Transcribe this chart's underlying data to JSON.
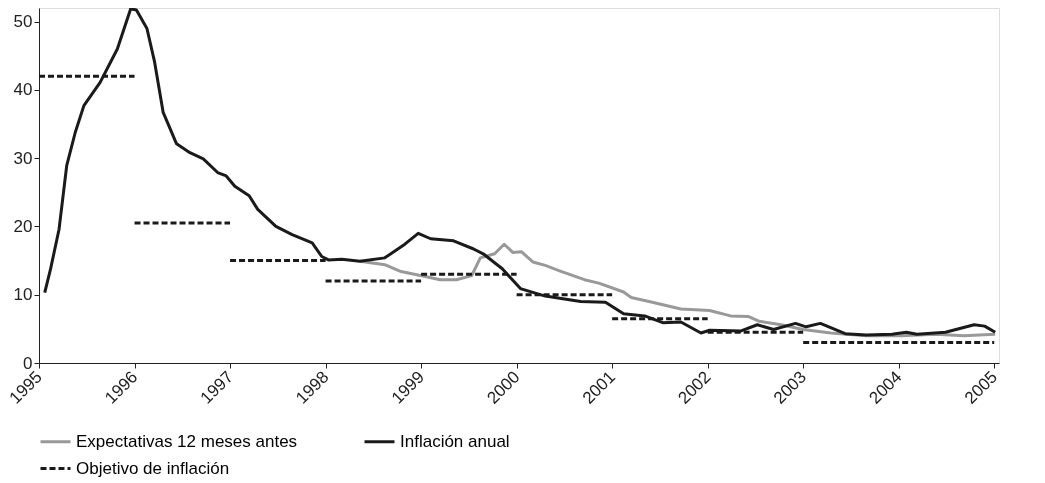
{
  "chart_data": {
    "type": "line",
    "legend": "bottom",
    "grid": false,
    "xlim": [
      1995,
      2005.05
    ],
    "xticks": [
      1995,
      1996,
      1997,
      1998,
      1999,
      2000,
      2001,
      2002,
      2003,
      2004,
      2005
    ],
    "ylim": [
      0,
      52
    ],
    "yticks": [
      0,
      10,
      20,
      30,
      40,
      50
    ],
    "series": [
      {
        "name": "Expectativas 12 meses antes",
        "color": "#999999",
        "line_style": "solid",
        "x": [
          1998.36,
          1998.62,
          1998.79,
          1999.03,
          1999.2,
          1999.37,
          1999.53,
          1999.62,
          1999.77,
          1999.87,
          1999.96,
          2000.05,
          2000.17,
          2000.3,
          2000.45,
          2000.71,
          2000.86,
          2001.12,
          2001.2,
          2001.42,
          2001.72,
          2002.02,
          2002.24,
          2002.43,
          2002.54,
          2002.77,
          2003.0,
          2003.29,
          2003.66,
          2004.03,
          2004.39,
          2004.68,
          2005.01
        ],
        "values": [
          14.9,
          14.4,
          13.4,
          12.7,
          12.2,
          12.2,
          12.8,
          15.4,
          16.0,
          17.4,
          16.2,
          16.3,
          14.8,
          14.3,
          13.5,
          12.2,
          11.7,
          10.4,
          9.6,
          8.9,
          7.9,
          7.7,
          6.9,
          6.8,
          6.1,
          5.6,
          4.9,
          4.4,
          4.0,
          4.0,
          4.2,
          4.0,
          4.2
        ]
      },
      {
        "name": "Inflación anual",
        "color": "#1a1a1a",
        "line_style": "solid",
        "x": [
          1995.06,
          1995.12,
          1995.21,
          1995.29,
          1995.38,
          1995.47,
          1995.64,
          1995.82,
          1995.96,
          1996.02,
          1996.13,
          1996.21,
          1996.3,
          1996.44,
          1996.58,
          1996.72,
          1996.87,
          1996.96,
          1997.05,
          1997.2,
          1997.29,
          1997.48,
          1997.65,
          1997.86,
          1997.96,
          1998.03,
          1998.17,
          1998.36,
          1998.62,
          1998.83,
          1998.97,
          1999.1,
          1999.34,
          1999.55,
          1999.66,
          1999.85,
          2000.04,
          2000.3,
          2000.67,
          2000.93,
          2001.12,
          2001.34,
          2001.53,
          2001.72,
          2001.93,
          2002.02,
          2002.35,
          2002.52,
          2002.69,
          2002.92,
          2003.03,
          2003.18,
          2003.44,
          2003.66,
          2003.93,
          2004.08,
          2004.19,
          2004.49,
          2004.79,
          2004.9,
          2005.01
        ],
        "values": [
          10.3,
          13.7,
          19.6,
          28.9,
          33.8,
          37.7,
          41.1,
          46.0,
          51.9,
          51.7,
          49.0,
          44.1,
          36.7,
          32.1,
          30.8,
          29.9,
          27.9,
          27.4,
          25.9,
          24.5,
          22.5,
          20.0,
          18.8,
          17.6,
          15.6,
          15.1,
          15.2,
          14.9,
          15.4,
          17.4,
          19.0,
          18.2,
          17.9,
          16.7,
          15.9,
          13.8,
          10.9,
          9.8,
          9.0,
          8.9,
          7.2,
          6.9,
          5.9,
          6.0,
          4.4,
          4.8,
          4.7,
          5.6,
          4.9,
          5.8,
          5.3,
          5.8,
          4.3,
          4.1,
          4.2,
          4.5,
          4.2,
          4.5,
          5.6,
          5.4,
          4.5
        ]
      },
      {
        "name": "Objetivo de inflación",
        "color": "#1a1a1a",
        "line_style": "dashed",
        "x": [
          1995,
          1996
        ],
        "values": [
          42,
          42
        ]
      },
      {
        "color": "#1a1a1a",
        "line_style": "dashed",
        "x": [
          1996,
          1997
        ],
        "values": [
          20.5,
          20.5
        ]
      },
      {
        "color": "#1a1a1a",
        "line_style": "dashed",
        "x": [
          1997,
          1998
        ],
        "values": [
          15,
          15
        ]
      },
      {
        "color": "#1a1a1a",
        "line_style": "dashed",
        "x": [
          1998,
          1999
        ],
        "values": [
          12,
          12
        ]
      },
      {
        "color": "#1a1a1a",
        "line_style": "dashed",
        "x": [
          1999,
          2000
        ],
        "values": [
          13,
          13
        ]
      },
      {
        "color": "#1a1a1a",
        "line_style": "dashed",
        "x": [
          2000,
          2001
        ],
        "values": [
          10,
          10
        ]
      },
      {
        "color": "#1a1a1a",
        "line_style": "dashed",
        "x": [
          2001,
          2002
        ],
        "values": [
          6.5,
          6.5
        ]
      },
      {
        "color": "#1a1a1a",
        "line_style": "dashed",
        "x": [
          2002,
          2003
        ],
        "values": [
          4.5,
          4.5
        ]
      },
      {
        "color": "#1a1a1a",
        "line_style": "dashed",
        "x": [
          2003,
          2005
        ],
        "values": [
          3,
          3
        ]
      }
    ]
  }
}
